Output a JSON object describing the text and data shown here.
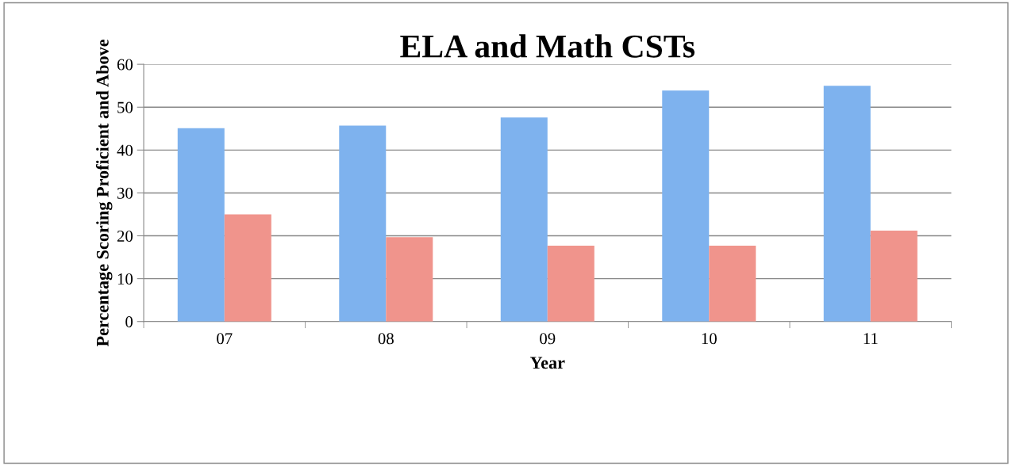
{
  "chart_data": {
    "type": "bar",
    "title": "ELA and Math CSTs",
    "xlabel": "Year",
    "ylabel": "Percentage Scoring Proficient and Above",
    "categories": [
      "07",
      "08",
      "09",
      "10",
      "11"
    ],
    "series": [
      {
        "color": "#7eb2ee",
        "values": [
          45.1,
          45.7,
          47.6,
          53.9,
          55.0
        ]
      },
      {
        "color": "#f0948c",
        "values": [
          25.0,
          19.7,
          17.7,
          17.7,
          21.2
        ]
      }
    ],
    "ylim": [
      0,
      60
    ],
    "yticks": [
      0,
      10,
      20,
      30,
      40,
      50,
      60
    ],
    "grid": "y",
    "legend": false
  }
}
